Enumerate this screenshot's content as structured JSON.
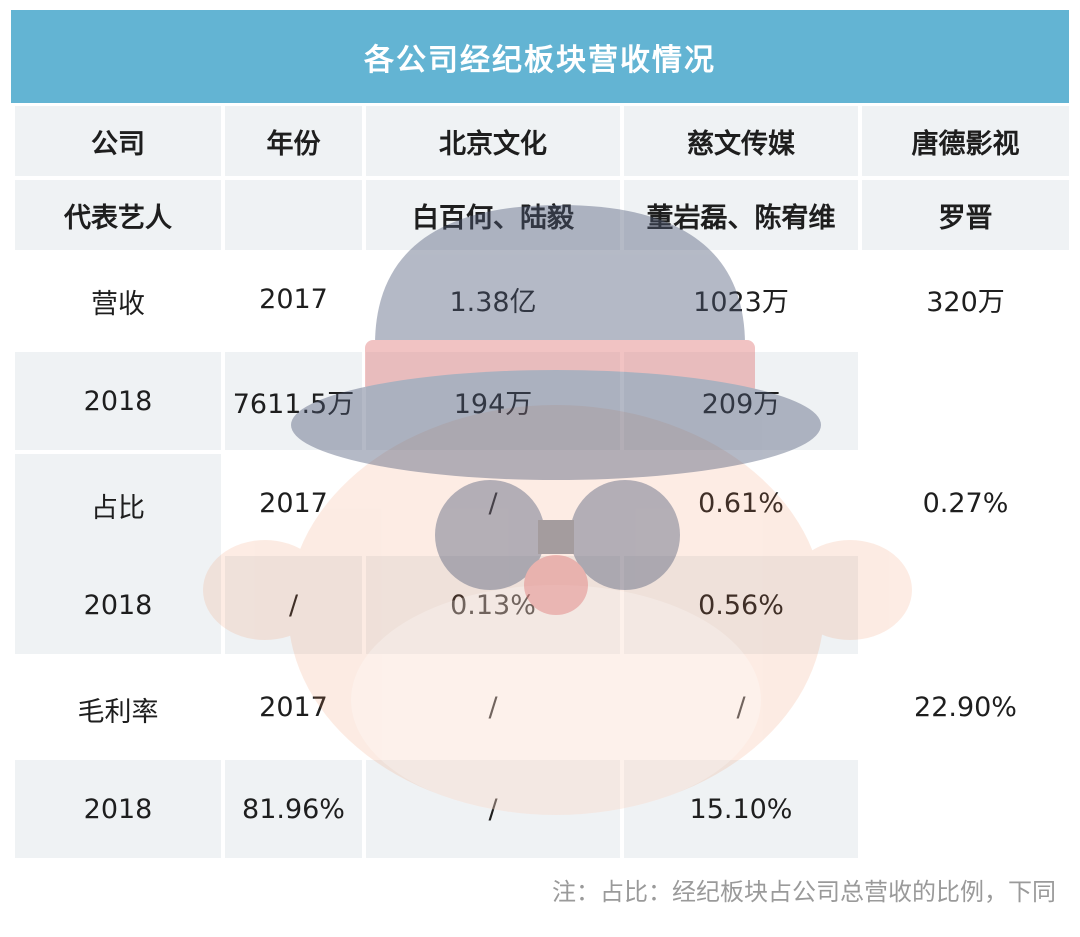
{
  "chart_data": {
    "type": "table",
    "title": "各公司经纪板块营收情况",
    "header": {
      "company_label": "公司",
      "year_label": "年份",
      "companies": [
        "北京文化",
        "慈文传媒",
        "唐德影视"
      ]
    },
    "artists": {
      "label": "代表艺人",
      "values": [
        "白百何、陆毅",
        "董岩磊、陈宥维",
        "罗晋"
      ]
    },
    "groups": [
      {
        "label": "营收",
        "rows": [
          {
            "year": "2017",
            "values": [
              "1.38亿",
              "1023万",
              "320万"
            ]
          },
          {
            "year": "2018",
            "values": [
              "7611.5万",
              "194万",
              "209万"
            ]
          }
        ]
      },
      {
        "label": "占比",
        "rows": [
          {
            "year": "2017",
            "values": [
              "/",
              "0.61%",
              "0.27%"
            ]
          },
          {
            "year": "2018",
            "values": [
              "/",
              "0.13%",
              "0.56%"
            ]
          }
        ]
      },
      {
        "label": "毛利率",
        "rows": [
          {
            "year": "2017",
            "values": [
              "/",
              "/",
              "22.90%"
            ]
          },
          {
            "year": "2018",
            "values": [
              "81.96%",
              "/",
              "15.10%"
            ]
          }
        ]
      }
    ],
    "footnote": "注：占比：经纪板块占公司总营收的比例，下同"
  },
  "colors": {
    "title_bar": "#63b4d3",
    "shade": "#ebeef1",
    "footnote": "#9a9a9a"
  }
}
